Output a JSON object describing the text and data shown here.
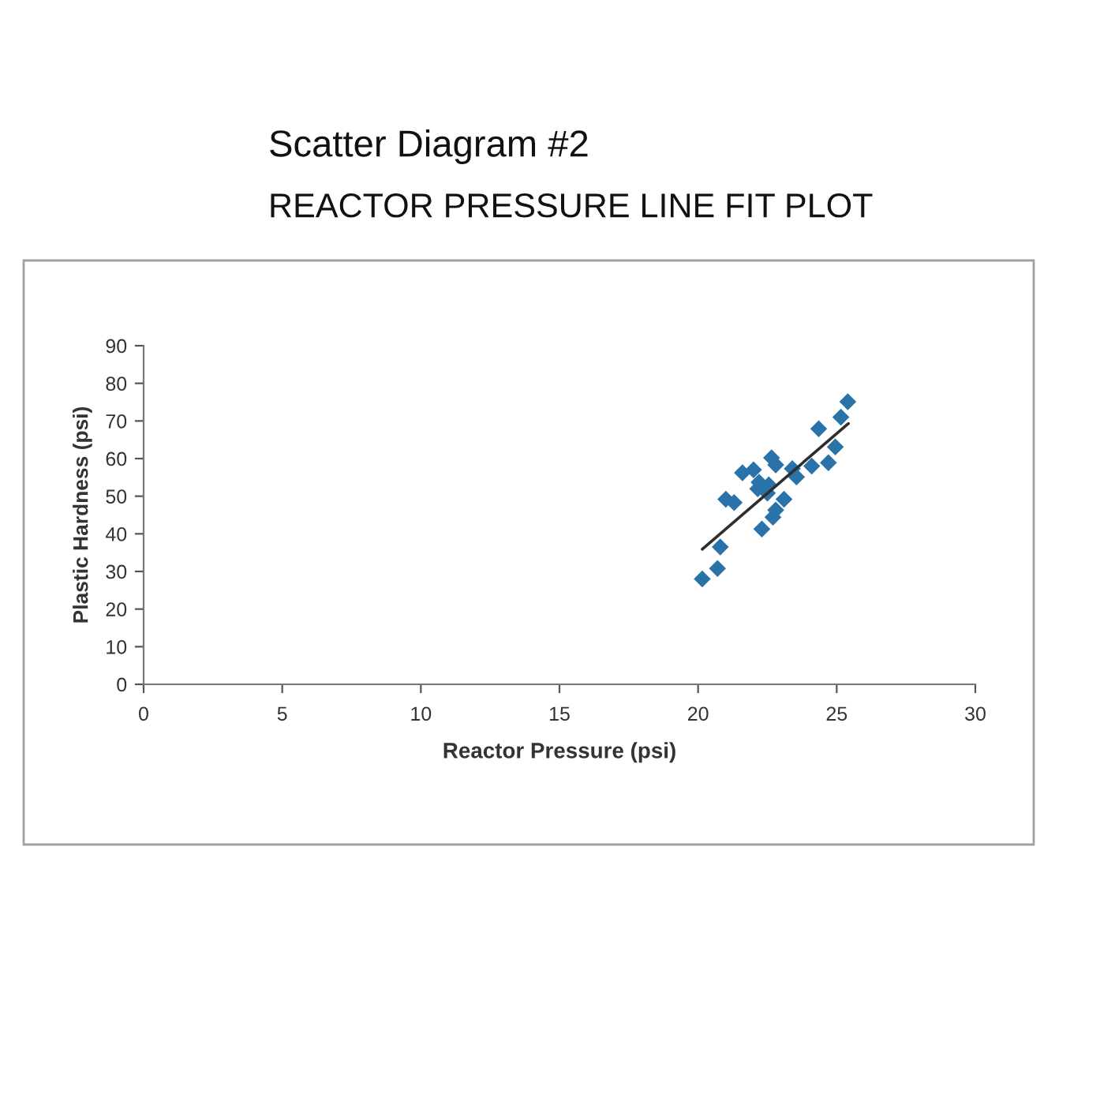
{
  "chart_data": {
    "type": "scatter",
    "title": "Scatter Diagram #2",
    "subtitle": "REACTOR PRESSURE LINE FIT PLOT",
    "xlabel": "Reactor Pressure (psi)",
    "ylabel": "Plastic Hardness (psi)",
    "xlim": [
      0,
      30
    ],
    "ylim": [
      0,
      90
    ],
    "xticks": [
      0,
      5,
      10,
      15,
      20,
      25,
      30
    ],
    "yticks": [
      0,
      10,
      20,
      30,
      40,
      50,
      60,
      70,
      80,
      90
    ],
    "grid": false,
    "series": [
      {
        "color": "#2a73a8",
        "marker": "diamond",
        "x": [
          20.15,
          20.7,
          20.8,
          21.0,
          21.3,
          21.6,
          22.0,
          22.15,
          22.2,
          22.3,
          22.5,
          22.55,
          22.65,
          22.8,
          22.8,
          22.7,
          23.1,
          23.4,
          23.55,
          24.1,
          24.35,
          24.7,
          24.95,
          25.15,
          25.4
        ],
        "values": [
          28.0,
          30.8,
          36.5,
          49.2,
          48.3,
          56.2,
          57.0,
          52.0,
          53.7,
          41.3,
          50.8,
          53.0,
          60.2,
          58.3,
          46.3,
          44.4,
          49.2,
          57.3,
          55.1,
          58.0,
          67.9,
          58.9,
          63.1,
          71.0,
          75.1
        ]
      },
      {
        "type": "line",
        "color": "#2e2e2e",
        "marker": "none",
        "line_style": "solid",
        "x": [
          20.15,
          25.42
        ],
        "values": [
          35.9,
          69.3
        ]
      }
    ]
  }
}
